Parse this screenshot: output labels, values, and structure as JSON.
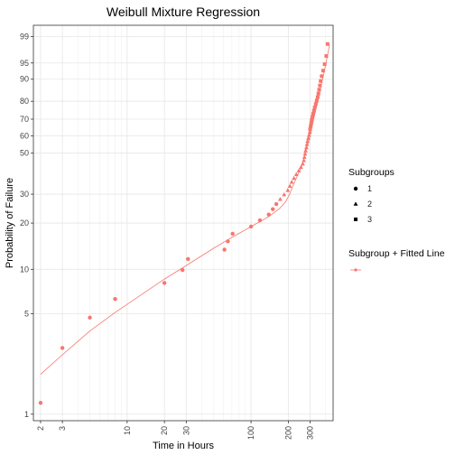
{
  "chart_data": {
    "type": "scatter",
    "title": "Weibull Mixture Regression",
    "xlabel": "Time in Hours",
    "ylabel": "Probability of Failure",
    "x_scale": "log",
    "y_scale": "weibull",
    "xlim": [
      1.75,
      460
    ],
    "ylim": [
      0.9,
      99.6
    ],
    "grid": true,
    "x_ticks": [
      {
        "value": 2,
        "label": "2"
      },
      {
        "value": 3,
        "label": "3"
      },
      {
        "value": 10,
        "label": "10"
      },
      {
        "value": 20,
        "label": "20"
      },
      {
        "value": 30,
        "label": "30"
      },
      {
        "value": 100,
        "label": "100"
      },
      {
        "value": 200,
        "label": "200"
      },
      {
        "value": 300,
        "label": "300"
      }
    ],
    "x_minor_ticks": [
      4,
      5,
      6,
      7,
      8,
      9,
      40,
      50,
      60,
      70,
      80,
      90,
      400
    ],
    "y_ticks": [
      {
        "value": 1,
        "label": "1"
      },
      {
        "value": 5,
        "label": "5"
      },
      {
        "value": 10,
        "label": "10"
      },
      {
        "value": 20,
        "label": "20"
      },
      {
        "value": 30,
        "label": "30"
      },
      {
        "value": 50,
        "label": "50"
      },
      {
        "value": 60,
        "label": "60"
      },
      {
        "value": 70,
        "label": "70"
      },
      {
        "value": 80,
        "label": "80"
      },
      {
        "value": 90,
        "label": "90"
      },
      {
        "value": 95,
        "label": "95"
      },
      {
        "value": 99,
        "label": "99"
      }
    ],
    "point_color": "#F8766D",
    "series": [
      {
        "name": "1",
        "shape": "circle",
        "points": [
          [
            2,
            1.2
          ],
          [
            3,
            2.9
          ],
          [
            5,
            4.7
          ],
          [
            8,
            6.3
          ],
          [
            20,
            8.1
          ],
          [
            28,
            9.9
          ],
          [
            31,
            11.7
          ],
          [
            61,
            13.5
          ],
          [
            65,
            15.3
          ],
          [
            71,
            17.1
          ],
          [
            100,
            19.0
          ],
          [
            118,
            20.8
          ],
          [
            139,
            22.6
          ],
          [
            150,
            24.4
          ],
          [
            160,
            26.2
          ]
        ]
      },
      {
        "name": "2",
        "shape": "triangle",
        "points": [
          [
            172,
            28.0
          ],
          [
            185,
            29.8
          ],
          [
            198,
            31.6
          ],
          [
            206,
            33.4
          ],
          [
            213,
            35.2
          ],
          [
            222,
            37.0
          ],
          [
            232,
            38.8
          ],
          [
            243,
            40.6
          ],
          [
            253,
            42.4
          ],
          [
            262,
            44.2
          ],
          [
            267,
            46.0
          ],
          [
            270,
            47.8
          ],
          [
            273,
            49.6
          ],
          [
            276,
            51.4
          ],
          [
            280,
            53.2
          ],
          [
            283,
            55.1
          ],
          [
            286,
            56.9
          ],
          [
            290,
            58.7
          ],
          [
            294,
            60.5
          ],
          [
            298,
            62.3
          ]
        ]
      },
      {
        "name": "3",
        "shape": "square",
        "points": [
          [
            300,
            64.1
          ],
          [
            303,
            65.9
          ],
          [
            306,
            67.7
          ],
          [
            309,
            69.5
          ],
          [
            313,
            71.3
          ],
          [
            317,
            73.1
          ],
          [
            322,
            74.9
          ],
          [
            327,
            76.7
          ],
          [
            333,
            78.5
          ],
          [
            339,
            80.3
          ],
          [
            345,
            82.1
          ],
          [
            350,
            83.9
          ],
          [
            355,
            85.7
          ],
          [
            360,
            87.5
          ],
          [
            365,
            89.3
          ],
          [
            372,
            91.1
          ],
          [
            382,
            92.9
          ],
          [
            393,
            94.7
          ],
          [
            405,
            96.5
          ],
          [
            415,
            98.3
          ]
        ]
      }
    ],
    "fitted_line": [
      [
        2,
        1.9
      ],
      [
        3,
        2.6
      ],
      [
        5,
        3.8
      ],
      [
        8,
        5.1
      ],
      [
        10,
        5.8
      ],
      [
        20,
        8.6
      ],
      [
        30,
        10.6
      ],
      [
        50,
        13.8
      ],
      [
        70,
        16.2
      ],
      [
        100,
        19.0
      ],
      [
        140,
        22.0
      ],
      [
        170,
        24.6
      ],
      [
        190,
        27.0
      ],
      [
        205,
        30.0
      ],
      [
        220,
        34.0
      ],
      [
        240,
        39.0
      ],
      [
        260,
        44.0
      ],
      [
        280,
        52.0
      ],
      [
        300,
        60.0
      ],
      [
        320,
        70.0
      ],
      [
        340,
        78.0
      ],
      [
        360,
        85.0
      ],
      [
        380,
        90.5
      ],
      [
        400,
        94.5
      ],
      [
        420,
        97.3
      ],
      [
        430,
        98.2
      ]
    ],
    "legend": {
      "placement": "right",
      "subgroups_title": "Subgroups",
      "subgroups": [
        {
          "label": "1",
          "shape": "circle"
        },
        {
          "label": "2",
          "shape": "triangle"
        },
        {
          "label": "3",
          "shape": "square"
        }
      ],
      "fitted_title": "Subgroup + Fitted Line"
    }
  }
}
